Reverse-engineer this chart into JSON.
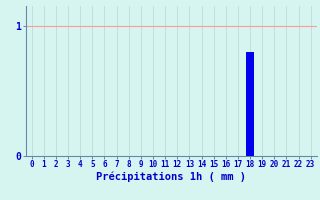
{
  "hours": [
    0,
    1,
    2,
    3,
    4,
    5,
    6,
    7,
    8,
    9,
    10,
    11,
    12,
    13,
    14,
    15,
    16,
    17,
    18,
    19,
    20,
    21,
    22,
    23
  ],
  "values": [
    0,
    0,
    0,
    0,
    0,
    0,
    0,
    0,
    0,
    0,
    0,
    0,
    0,
    0,
    0,
    0,
    0,
    0,
    0.8,
    0,
    0,
    0,
    0,
    0
  ],
  "bar_color": "#0000ee",
  "background_color": "#d6f5f0",
  "xlabel": "Précipitations 1h ( mm )",
  "ylim": [
    0,
    1.15
  ],
  "yticks": [
    0,
    1
  ],
  "ytick_labels": [
    "0",
    "1"
  ],
  "grid_color_h": "#ff9999",
  "grid_color_v": "#b8d8d4",
  "label_color": "#0000cc",
  "axis_color": "#6688aa",
  "tick_fontsize": 5.5,
  "xlabel_fontsize": 7.5
}
